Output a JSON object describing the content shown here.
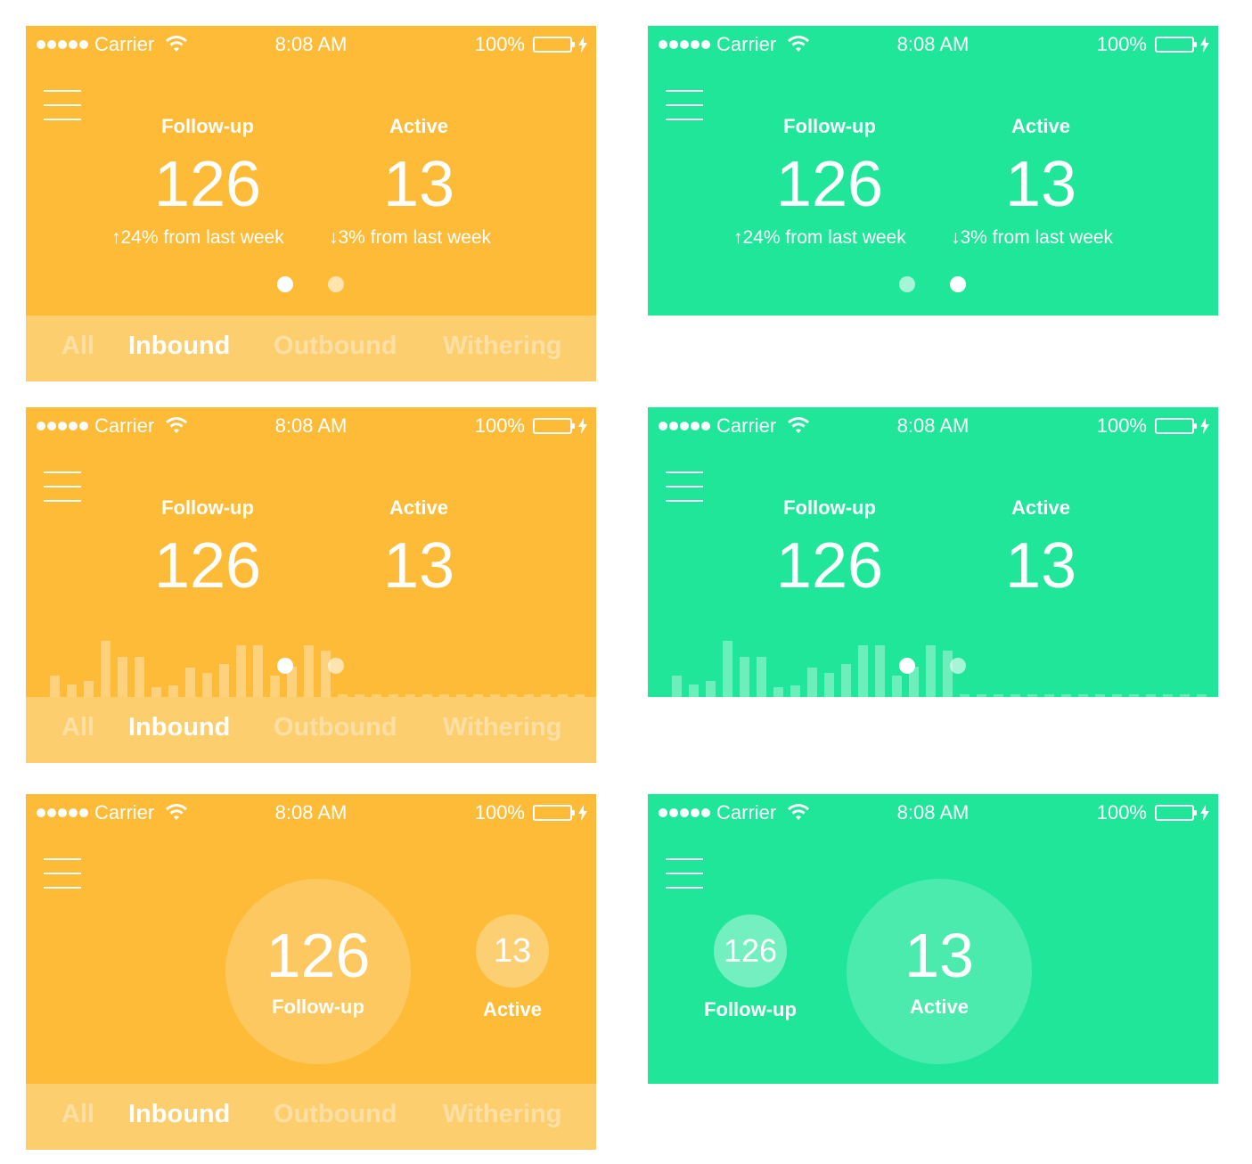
{
  "status": {
    "signal_label": "Carrier",
    "time": "8:08 AM",
    "battery": "100%"
  },
  "stats": {
    "followup": {
      "label": "Follow-up",
      "value": "126",
      "delta": "24% from last week"
    },
    "active": {
      "label": "Active",
      "value": "13",
      "delta": "3% from last week"
    }
  },
  "tabs": [
    {
      "label": "All"
    },
    {
      "label": "Inbound"
    },
    {
      "label": "Outbound"
    },
    {
      "label": "Withering"
    }
  ],
  "active_tab": "Inbound",
  "pager": {
    "count": 2
  },
  "chart_data": {
    "type": "bar",
    "values": [
      24,
      14,
      18,
      63,
      45,
      45,
      11,
      13,
      33,
      27,
      37,
      58,
      58,
      24,
      34,
      58,
      52,
      3,
      3,
      3,
      3,
      3,
      3,
      3,
      3,
      3,
      3,
      3,
      3,
      3,
      3,
      3
    ],
    "highlighted_until_index": 16,
    "ylim": [
      0,
      63
    ],
    "grid": false
  },
  "colors": {
    "yellow": "#fdbb37",
    "green": "#1fe699"
  }
}
